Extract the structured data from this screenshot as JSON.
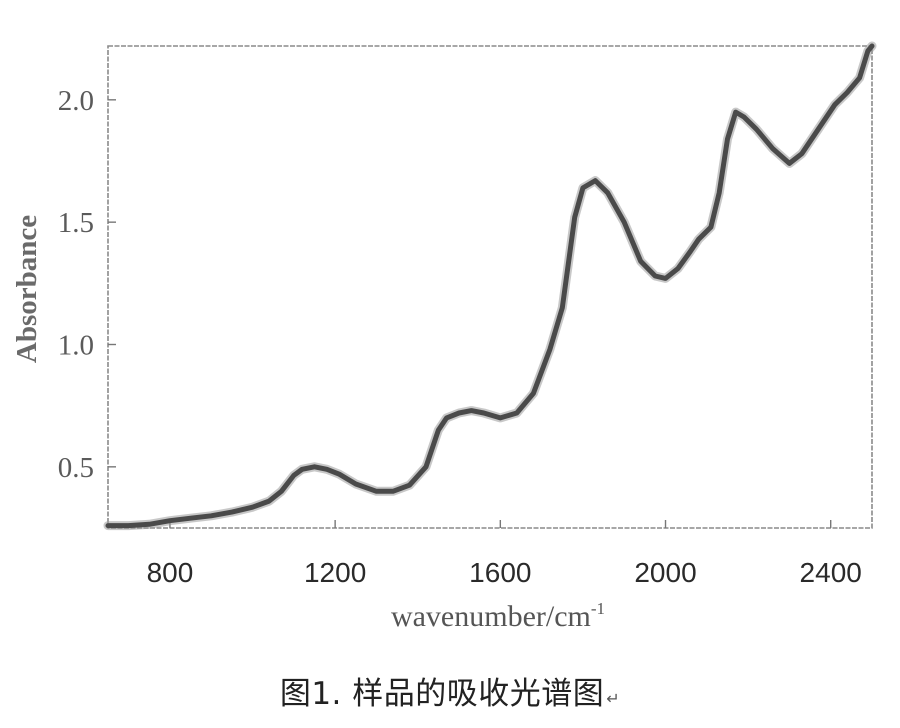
{
  "chart_data": {
    "type": "line",
    "xlabel": "wavenumber/cm",
    "xlabel_superscript": "-1",
    "ylabel": "Absorbance",
    "xlim": [
      650,
      2500
    ],
    "ylim": [
      0.25,
      2.22
    ],
    "x_ticks": [
      {
        "value": 800,
        "label": "800"
      },
      {
        "value": 1200,
        "label": "1200"
      },
      {
        "value": 1600,
        "label": "1600"
      },
      {
        "value": 2000,
        "label": "2000"
      },
      {
        "value": 2400,
        "label": "2400"
      }
    ],
    "y_ticks": [
      {
        "value": 0.5,
        "label": "0.5"
      },
      {
        "value": 1.0,
        "label": "1.0"
      },
      {
        "value": 1.5,
        "label": "1.5"
      },
      {
        "value": 2.0,
        "label": "2.0"
      }
    ],
    "grid": false,
    "series": [
      {
        "color": "#4a4a4a",
        "points": [
          [
            650,
            0.26
          ],
          [
            700,
            0.26
          ],
          [
            750,
            0.265
          ],
          [
            800,
            0.28
          ],
          [
            850,
            0.29
          ],
          [
            900,
            0.3
          ],
          [
            950,
            0.315
          ],
          [
            1000,
            0.335
          ],
          [
            1040,
            0.36
          ],
          [
            1070,
            0.4
          ],
          [
            1100,
            0.465
          ],
          [
            1120,
            0.49
          ],
          [
            1150,
            0.5
          ],
          [
            1180,
            0.49
          ],
          [
            1210,
            0.47
          ],
          [
            1250,
            0.43
          ],
          [
            1300,
            0.4
          ],
          [
            1340,
            0.4
          ],
          [
            1380,
            0.425
          ],
          [
            1420,
            0.5
          ],
          [
            1450,
            0.65
          ],
          [
            1470,
            0.7
          ],
          [
            1500,
            0.72
          ],
          [
            1530,
            0.73
          ],
          [
            1560,
            0.72
          ],
          [
            1600,
            0.7
          ],
          [
            1640,
            0.72
          ],
          [
            1680,
            0.8
          ],
          [
            1720,
            0.98
          ],
          [
            1750,
            1.15
          ],
          [
            1780,
            1.52
          ],
          [
            1800,
            1.64
          ],
          [
            1830,
            1.67
          ],
          [
            1860,
            1.62
          ],
          [
            1900,
            1.5
          ],
          [
            1940,
            1.34
          ],
          [
            1975,
            1.28
          ],
          [
            2000,
            1.27
          ],
          [
            2030,
            1.31
          ],
          [
            2060,
            1.38
          ],
          [
            2080,
            1.43
          ],
          [
            2110,
            1.48
          ],
          [
            2130,
            1.62
          ],
          [
            2150,
            1.84
          ],
          [
            2170,
            1.95
          ],
          [
            2190,
            1.93
          ],
          [
            2220,
            1.88
          ],
          [
            2260,
            1.8
          ],
          [
            2300,
            1.74
          ],
          [
            2330,
            1.78
          ],
          [
            2370,
            1.88
          ],
          [
            2410,
            1.98
          ],
          [
            2440,
            2.03
          ],
          [
            2470,
            2.09
          ],
          [
            2490,
            2.2
          ],
          [
            2500,
            2.22
          ]
        ]
      }
    ]
  },
  "caption": {
    "text": "图1. 样品的吸收光谱图",
    "mark": "↵"
  }
}
